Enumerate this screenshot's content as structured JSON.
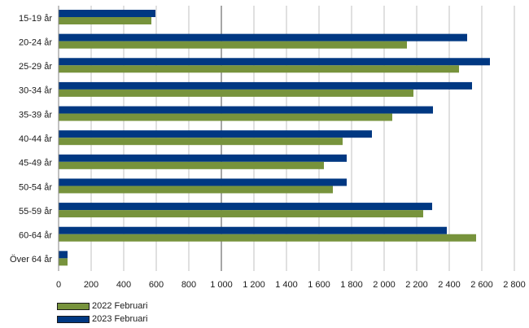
{
  "colors": {
    "series_2022": "#77933C",
    "series_2023": "#003882",
    "grid": "#c0c0c0",
    "axis": "#808080"
  },
  "chart_data": {
    "type": "bar",
    "orientation": "horizontal",
    "categories": [
      "15-19 år",
      "20-24 år",
      "25-29 år",
      "30-34 år",
      "35-39 år",
      "40-44 år",
      "45-49 år",
      "50-54 år",
      "55-59 år",
      "60-64 år",
      "Över 64 år"
    ],
    "series": [
      {
        "name": "2022 Februari",
        "values": [
          570,
          2140,
          2460,
          2180,
          2050,
          1745,
          1630,
          1685,
          2240,
          2565,
          55
        ]
      },
      {
        "name": "2023 Februari",
        "values": [
          595,
          2510,
          2650,
          2540,
          2300,
          1925,
          1770,
          1770,
          2295,
          2385,
          55
        ]
      }
    ],
    "xlim": [
      0,
      2800
    ],
    "xticks": [
      0,
      200,
      400,
      600,
      800,
      1000,
      1200,
      1400,
      1600,
      1800,
      2000,
      2200,
      2400,
      2600,
      2800
    ],
    "xtick_labels": [
      "0",
      "200",
      "400",
      "600",
      "800",
      "1 000",
      "1 200",
      "1 400",
      "1 600",
      "1 800",
      "2 000",
      "2 200",
      "2 400",
      "2 600",
      "2 800"
    ],
    "grid": true,
    "legend_position": "bottom-left"
  }
}
